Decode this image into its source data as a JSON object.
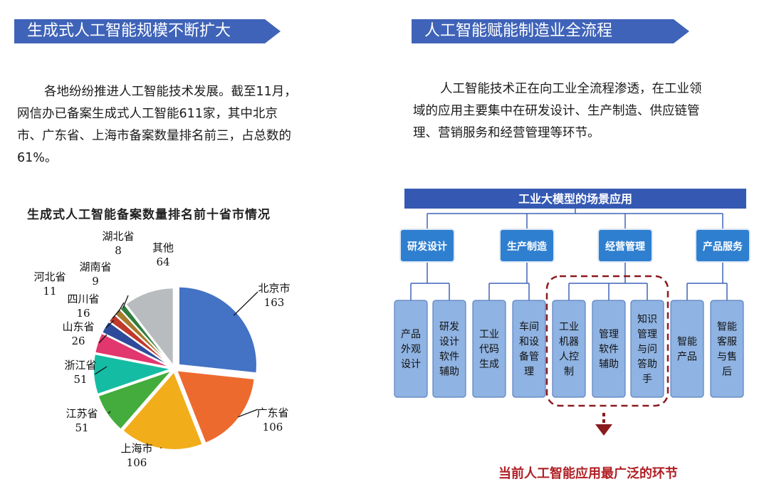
{
  "left": {
    "banner": "生成式人工智能规模不断扩大",
    "paragraph": "各地纷纷推进人工智能技术发展。截至11月，网信办已备案生成式人工智能611家，其中北京市、广东省、上海市备案数量排名前三，占总数的61%。",
    "paragraph_lines": [
      "各地纷纷推进人工智能技术发展。截至11月，",
      "网信办已备案生成式人工智能611家，其中北京",
      "市、广东省、上海市备案数量排名前三，占总数的",
      "61%。"
    ]
  },
  "right": {
    "banner": "人工智能赋能制造业全流程",
    "paragraph_lines": [
      "人工智能技术正在向工业全流程渗透，在工业领",
      "域的应用主要集中在研发设计、生产制造、供应链管",
      "理、营销服务和经营管理等环节。"
    ]
  },
  "chart_data": {
    "type": "pie",
    "title": "生成式人工智能备案数量排名前十省市情况",
    "slices": [
      {
        "label": "北京市",
        "value": 163,
        "color": "#4472c4"
      },
      {
        "label": "广东省",
        "value": 106,
        "color": "#ed6a2e"
      },
      {
        "label": "上海市",
        "value": 106,
        "color": "#f2ad1b"
      },
      {
        "label": "江苏省",
        "value": 51,
        "color": "#43ac3c"
      },
      {
        "label": "浙江省",
        "value": 51,
        "color": "#15bca4"
      },
      {
        "label": "山东省",
        "value": 26,
        "color": "#e2366f"
      },
      {
        "label": "四川省",
        "value": 16,
        "color": "#2e4a9a"
      },
      {
        "label": "河北省",
        "value": 11,
        "color": "#c0392b"
      },
      {
        "label": "湖南省",
        "value": 9,
        "color": "#a57a2c"
      },
      {
        "label": "湖北省",
        "value": 8,
        "color": "#2f7d3c"
      },
      {
        "label": "其他",
        "value": 64,
        "color": "#b9bcbe"
      }
    ]
  },
  "diagram": {
    "top": "工业大模型的场景应用",
    "categories": [
      {
        "label": "研发设计",
        "leaves": [
          "产品外观设计",
          "研发设计软件辅助"
        ]
      },
      {
        "label": "生产制造",
        "leaves": [
          "工业代码生成",
          "车间和设备管理"
        ]
      },
      {
        "label": "经营管理",
        "leaves": [
          "工业机器人控制",
          "管理软件辅助",
          "知识管理与问答助手"
        ]
      },
      {
        "label": "产品服务",
        "leaves": [
          "智能产品",
          "智能客服与售后"
        ]
      }
    ],
    "leaf_lines": [
      [
        "产品",
        "外观",
        "设计"
      ],
      [
        "研发",
        "设计",
        "软件",
        "辅助"
      ],
      [
        "工业",
        "代码",
        "生成"
      ],
      [
        "车间",
        "和设",
        "备管",
        "理"
      ],
      [
        "工业",
        "机器",
        "人控",
        "制"
      ],
      [
        "管理",
        "软件",
        "辅助"
      ],
      [
        "知识",
        "管理",
        "与问",
        "答助",
        "手"
      ],
      [
        "智能",
        "产品"
      ],
      [
        "智能",
        "客服",
        "与售",
        "后"
      ]
    ],
    "callout": "当前人工智能应用最广泛的环节"
  }
}
